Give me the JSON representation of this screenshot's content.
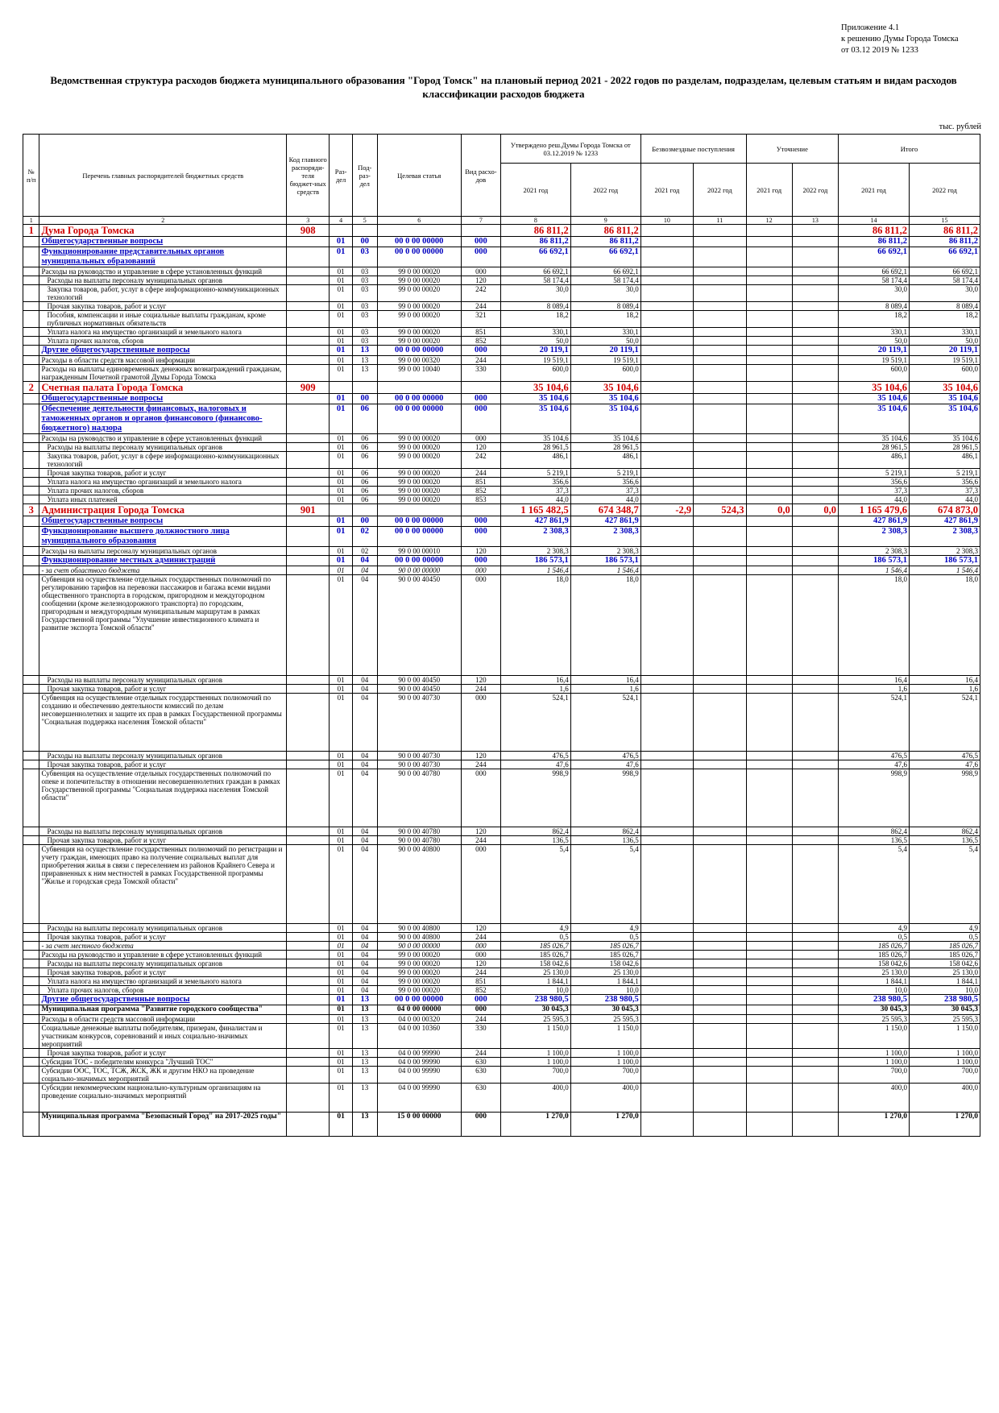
{
  "appendix": {
    "line1": "Приложение 4.1",
    "line2": "к решению Думы Города Томска",
    "line3": "от 03.12 2019 № 1233"
  },
  "title": "Ведомственная структура расходов бюджета муниципального образования \"Город Томск\" на плановый период 2021 - 2022 годов по разделам, подразделам, целевым статьям и видам расходов классификации расходов бюджета",
  "units": "тыс. рублей",
  "headers": {
    "num": "№ п/п",
    "name": "Перечень главных распорядителей бюджетных средств",
    "code": "Код главного распоряди-теля бюджет-ных средств",
    "section": "Раз-дел",
    "subsection": "Под-раз-дел",
    "target": "Целевая статья",
    "kind": "Вид расхо-дов",
    "approved": "Утверждено реш.Думы Города Томска от 03.12.2019 № 1233",
    "grants": "Безвозмездные поступления",
    "clarify": "Уточнение",
    "total": "Итого",
    "y2021": "2021 год",
    "y2022": "2022 год",
    "colnums": [
      "1",
      "2",
      "3",
      "4",
      "5",
      "6",
      "7",
      "8",
      "9",
      "10",
      "11",
      "12",
      "13",
      "14",
      "15"
    ]
  },
  "rows": [
    {
      "t": "l1",
      "n": "1",
      "name": "Дума Города Томска",
      "code": "908",
      "v8": "86 811,2",
      "v9": "86 811,2",
      "v14": "86 811,2",
      "v15": "86 811,2"
    },
    {
      "t": "l2",
      "name": "Общегосударственные вопросы",
      "s": "01",
      "p": "00",
      "c": "00 0 00 00000",
      "k": "000",
      "v8": "86 811,2",
      "v9": "86 811,2",
      "v14": "86 811,2",
      "v15": "86 811,2"
    },
    {
      "t": "l2",
      "name": "Функционирование представительных органов муниципальных образований",
      "s": "01",
      "p": "03",
      "c": "00 0 00 00000",
      "k": "000",
      "v8": "66 692,1",
      "v9": "66 692,1",
      "v14": "66 692,1",
      "v15": "66 692,1"
    },
    {
      "t": "d",
      "name": "Расходы на руководство и управление в сфере установленных функций",
      "s": "01",
      "p": "03",
      "c": "99 0 00 00020",
      "k": "000",
      "v8": "66 692,1",
      "v9": "66 692,1",
      "v14": "66 692,1",
      "v15": "66 692,1"
    },
    {
      "t": "d",
      "ind": 1,
      "name": "Расходы на выплаты персоналу муниципальных органов",
      "s": "01",
      "p": "03",
      "c": "99 0 00 00020",
      "k": "120",
      "v8": "58 174,4",
      "v9": "58 174,4",
      "v14": "58 174,4",
      "v15": "58 174,4"
    },
    {
      "t": "d",
      "ind": 1,
      "name": "Закупка товаров, работ, услуг в сфере информационно-коммуникационных технологий",
      "s": "01",
      "p": "03",
      "c": "99 0 00 00020",
      "k": "242",
      "v8": "30,0",
      "v9": "30,0",
      "v14": "30,0",
      "v15": "30,0"
    },
    {
      "t": "d",
      "ind": 1,
      "name": "Прочая закупка товаров, работ и услуг",
      "s": "01",
      "p": "03",
      "c": "99 0 00 00020",
      "k": "244",
      "v8": "8 089,4",
      "v9": "8 089,4",
      "v14": "8 089,4",
      "v15": "8 089,4"
    },
    {
      "t": "d",
      "ind": 1,
      "name": "Пособия, компенсации и иные социальные выплаты гражданам, кроме публичных нормативных обязательств",
      "s": "01",
      "p": "03",
      "c": "99 0 00 00020",
      "k": "321",
      "v8": "18,2",
      "v9": "18,2",
      "v14": "18,2",
      "v15": "18,2"
    },
    {
      "t": "d",
      "ind": 1,
      "name": "Уплата налога на имущество организаций и земельного налога",
      "s": "01",
      "p": "03",
      "c": "99 0 00 00020",
      "k": "851",
      "v8": "330,1",
      "v9": "330,1",
      "v14": "330,1",
      "v15": "330,1"
    },
    {
      "t": "d",
      "ind": 1,
      "name": "Уплата прочих налогов, сборов",
      "s": "01",
      "p": "03",
      "c": "99 0 00 00020",
      "k": "852",
      "v8": "50,0",
      "v9": "50,0",
      "v14": "50,0",
      "v15": "50,0"
    },
    {
      "t": "l2",
      "name": "Другие общегосударственные вопросы",
      "s": "01",
      "p": "13",
      "c": "00 0 00 00000",
      "k": "000",
      "v8": "20 119,1",
      "v9": "20 119,1",
      "v14": "20 119,1",
      "v15": "20 119,1"
    },
    {
      "t": "d",
      "name": "Расходы в области средств массовой информации",
      "s": "01",
      "p": "13",
      "c": "99 0 00 00320",
      "k": "244",
      "v8": "19 519,1",
      "v9": "19 519,1",
      "v14": "19 519,1",
      "v15": "19 519,1"
    },
    {
      "t": "d",
      "name": "Расходы на выплаты единовременных денежных вознаграждений гражданам, награжденным Почетной грамотой Думы Города Томска",
      "s": "01",
      "p": "13",
      "c": "99 0 00 10040",
      "k": "330",
      "v8": "600,0",
      "v9": "600,0",
      "v14": "600,0",
      "v15": "600,0"
    },
    {
      "t": "l1",
      "n": "2",
      "name": "Счетная палата Города Томска",
      "code": "909",
      "v8": "35 104,6",
      "v9": "35 104,6",
      "v14": "35 104,6",
      "v15": "35 104,6"
    },
    {
      "t": "l2",
      "name": "Общегосударственные вопросы",
      "s": "01",
      "p": "00",
      "c": "00 0 00 00000",
      "k": "000",
      "v8": "35 104,6",
      "v9": "35 104,6",
      "v14": "35 104,6",
      "v15": "35 104,6"
    },
    {
      "t": "l2",
      "name": "Обеспечение деятельности финансовых, налоговых и таможенных органов и органов финансового (финансово-бюджетного) надзора",
      "s": "01",
      "p": "06",
      "c": "00 0 00 00000",
      "k": "000",
      "v8": "35 104,6",
      "v9": "35 104,6",
      "v14": "35 104,6",
      "v15": "35 104,6"
    },
    {
      "t": "d",
      "name": "Расходы на руководство и управление в сфере установленных функций",
      "s": "01",
      "p": "06",
      "c": "99 0 00 00020",
      "k": "000",
      "v8": "35 104,6",
      "v9": "35 104,6",
      "v14": "35 104,6",
      "v15": "35 104,6"
    },
    {
      "t": "d",
      "ind": 1,
      "name": "Расходы на выплаты персоналу муниципальных органов",
      "s": "01",
      "p": "06",
      "c": "99 0 00 00020",
      "k": "120",
      "v8": "28 961,5",
      "v9": "28 961,5",
      "v14": "28 961,5",
      "v15": "28 961,5"
    },
    {
      "t": "d",
      "ind": 1,
      "name": "Закупка товаров, работ, услуг в сфере информационно-коммуникационных технологий",
      "s": "01",
      "p": "06",
      "c": "99 0 00 00020",
      "k": "242",
      "v8": "486,1",
      "v9": "486,1",
      "v14": "486,1",
      "v15": "486,1"
    },
    {
      "t": "d",
      "ind": 1,
      "name": "Прочая закупка товаров, работ и услуг",
      "s": "01",
      "p": "06",
      "c": "99 0 00 00020",
      "k": "244",
      "v8": "5 219,1",
      "v9": "5 219,1",
      "v14": "5 219,1",
      "v15": "5 219,1"
    },
    {
      "t": "d",
      "ind": 1,
      "name": "Уплата налога на имущество организаций и земельного налога",
      "s": "01",
      "p": "06",
      "c": "99 0 00 00020",
      "k": "851",
      "v8": "356,6",
      "v9": "356,6",
      "v14": "356,6",
      "v15": "356,6"
    },
    {
      "t": "d",
      "ind": 1,
      "name": "Уплата прочих налогов, сборов",
      "s": "01",
      "p": "06",
      "c": "99 0 00 00020",
      "k": "852",
      "v8": "37,3",
      "v9": "37,3",
      "v14": "37,3",
      "v15": "37,3"
    },
    {
      "t": "d",
      "ind": 1,
      "name": "Уплата иных платежей",
      "s": "01",
      "p": "06",
      "c": "99 0 00 00020",
      "k": "853",
      "v8": "44,0",
      "v9": "44,0",
      "v14": "44,0",
      "v15": "44,0"
    },
    {
      "t": "l1",
      "n": "3",
      "name": "Администрация Города Томска",
      "code": "901",
      "v8": "1 165 482,5",
      "v9": "674 348,7",
      "v10": "-2,9",
      "v11": "524,3",
      "v12": "0,0",
      "v13": "0,0",
      "v14": "1 165 479,6",
      "v15": "674 873,0"
    },
    {
      "t": "l2",
      "name": "Общегосударственные вопросы",
      "s": "01",
      "p": "00",
      "c": "00 0 00 00000",
      "k": "000",
      "v8": "427 861,9",
      "v9": "427 861,9",
      "v14": "427 861,9",
      "v15": "427 861,9"
    },
    {
      "t": "l2",
      "name": "Функционирование высшего должностного лица муниципального образования",
      "s": "01",
      "p": "02",
      "c": "00 0 00 00000",
      "k": "000",
      "v8": "2 308,3",
      "v9": "2 308,3",
      "v14": "2 308,3",
      "v15": "2 308,3"
    },
    {
      "t": "d",
      "name": "Расходы на выплаты персоналу муниципальных органов",
      "s": "01",
      "p": "02",
      "c": "99 0 00 00010",
      "k": "120",
      "v8": "2 308,3",
      "v9": "2 308,3",
      "v14": "2 308,3",
      "v15": "2 308,3"
    },
    {
      "t": "l2",
      "name": "Функционирование местных администраций",
      "s": "01",
      "p": "04",
      "c": "00 0 00 00000",
      "k": "000",
      "v8": "186 573,1",
      "v9": "186 573,1",
      "v14": "186 573,1",
      "v15": "186 573,1"
    },
    {
      "t": "f",
      "name": "- за счет областного бюджета",
      "s": "01",
      "p": "04",
      "c": "90 0 00 00000",
      "k": "000",
      "v8": "1 546,4",
      "v9": "1 546,4",
      "v14": "1 546,4",
      "v15": "1 546,4"
    },
    {
      "t": "d",
      "h": 125,
      "name": "Субвенция на осуществление отдельных государственных полномочий по регулированию тарифов на перевозки пассажиров и багажа всеми видами общественного транспорта в городском, пригородном и междугородном сообщении (кроме железнодорожного транспорта) по городским, пригородным и междугородным муниципальным маршрутам в рамках Государственной программы \"Улучшение инвестиционного климата и развитие экспорта Томской области\"",
      "s": "01",
      "p": "04",
      "c": "90 0 00 40450",
      "k": "000",
      "v8": "18,0",
      "v9": "18,0",
      "v14": "18,0",
      "v15": "18,0"
    },
    {
      "t": "d",
      "ind": 1,
      "name": "Расходы на выплаты персоналу муниципальных органов",
      "s": "01",
      "p": "04",
      "c": "90 0 00 40450",
      "k": "120",
      "v8": "16,4",
      "v9": "16,4",
      "v14": "16,4",
      "v15": "16,4"
    },
    {
      "t": "d",
      "ind": 1,
      "name": "Прочая закупка товаров, работ и услуг",
      "s": "01",
      "p": "04",
      "c": "90 0 00 40450",
      "k": "244",
      "v8": "1,6",
      "v9": "1,6",
      "v14": "1,6",
      "v15": "1,6"
    },
    {
      "t": "d",
      "h": 72,
      "name": "Субвенция на осуществление отдельных государственных полномочий по созданию и обеспечению деятельности комиссий по делам несовершеннолетних и защите их прав в рамках Государственной программы \"Социальная поддержка населения Томской области\"",
      "s": "01",
      "p": "04",
      "c": "90 0 00 40730",
      "k": "000",
      "v8": "524,1",
      "v9": "524,1",
      "v14": "524,1",
      "v15": "524,1"
    },
    {
      "t": "d",
      "ind": 1,
      "name": "Расходы на выплаты персоналу муниципальных органов",
      "s": "01",
      "p": "04",
      "c": "90 0 00 40730",
      "k": "120",
      "v8": "476,5",
      "v9": "476,5",
      "v14": "476,5",
      "v15": "476,5"
    },
    {
      "t": "d",
      "ind": 1,
      "name": "Прочая закупка товаров, работ и услуг",
      "s": "01",
      "p": "04",
      "c": "90 0 00 40730",
      "k": "244",
      "v8": "47,6",
      "v9": "47,6",
      "v14": "47,6",
      "v15": "47,6"
    },
    {
      "t": "d",
      "h": 72,
      "name": "Субвенция на осуществление отдельных государственных полномочий по опеке и попечительству в отношении несовершеннолетних граждан в рамках Государственной программы \"Социальная поддержка населения Томской области\"",
      "s": "01",
      "p": "04",
      "c": "90 0 00 40780",
      "k": "000",
      "v8": "998,9",
      "v9": "998,9",
      "v14": "998,9",
      "v15": "998,9"
    },
    {
      "t": "d",
      "ind": 1,
      "name": "Расходы на выплаты персоналу муниципальных органов",
      "s": "01",
      "p": "04",
      "c": "90 0 00 40780",
      "k": "120",
      "v8": "862,4",
      "v9": "862,4",
      "v14": "862,4",
      "v15": "862,4"
    },
    {
      "t": "d",
      "ind": 1,
      "name": "Прочая закупка товаров, работ и услуг",
      "s": "01",
      "p": "04",
      "c": "90 0 00 40780",
      "k": "244",
      "v8": "136,5",
      "v9": "136,5",
      "v14": "136,5",
      "v15": "136,5"
    },
    {
      "t": "d",
      "h": 98,
      "name": "Субвенция на осуществление государственных полномочий по регистрации и учету граждан, имеющих право на получение социальных выплат для приобретения жилья в связи с переселением из районов Крайнего Севера и приравненных к ним местностей в рамках Государственной программы \"Жилье и городская среда Томской области\"",
      "s": "01",
      "p": "04",
      "c": "90 0 00 40800",
      "k": "000",
      "v8": "5,4",
      "v9": "5,4",
      "v14": "5,4",
      "v15": "5,4"
    },
    {
      "t": "d",
      "ind": 1,
      "name": "Расходы на выплаты персоналу муниципальных органов",
      "s": "01",
      "p": "04",
      "c": "90 0 00 40800",
      "k": "120",
      "v8": "4,9",
      "v9": "4,9",
      "v14": "4,9",
      "v15": "4,9"
    },
    {
      "t": "d",
      "ind": 1,
      "name": "Прочая закупка товаров, работ и услуг",
      "s": "01",
      "p": "04",
      "c": "90 0 00 40800",
      "k": "244",
      "v8": "0,5",
      "v9": "0,5",
      "v14": "0,5",
      "v15": "0,5"
    },
    {
      "t": "f",
      "name": "- за счет местного бюджета",
      "s": "01",
      "p": "04",
      "c": "90 0 00 00000",
      "k": "000",
      "v8": "185 026,7",
      "v9": "185 026,7",
      "v14": "185 026,7",
      "v15": "185 026,7"
    },
    {
      "t": "d",
      "name": "Расходы на руководство и управление в сфере установленных функций",
      "s": "01",
      "p": "04",
      "c": "99 0 00 00020",
      "k": "000",
      "v8": "185 026,7",
      "v9": "185 026,7",
      "v14": "185 026,7",
      "v15": "185 026,7"
    },
    {
      "t": "d",
      "ind": 1,
      "name": "Расходы на выплаты персоналу муниципальных органов",
      "s": "01",
      "p": "04",
      "c": "99 0 00 00020",
      "k": "120",
      "v8": "158 042,6",
      "v9": "158 042,6",
      "v14": "158 042,6",
      "v15": "158 042,6"
    },
    {
      "t": "d",
      "ind": 1,
      "name": "Прочая закупка товаров, работ и услуг",
      "s": "01",
      "p": "04",
      "c": "99 0 00 00020",
      "k": "244",
      "v8": "25 130,0",
      "v9": "25 130,0",
      "v14": "25 130,0",
      "v15": "25 130,0"
    },
    {
      "t": "d",
      "ind": 1,
      "name": "Уплата налога на имущество организаций и земельного налога",
      "s": "01",
      "p": "04",
      "c": "99 0 00 00020",
      "k": "851",
      "v8": "1 844,1",
      "v9": "1 844,1",
      "v14": "1 844,1",
      "v15": "1 844,1"
    },
    {
      "t": "d",
      "ind": 1,
      "name": "Уплата прочих налогов, сборов",
      "s": "01",
      "p": "04",
      "c": "99 0 00 00020",
      "k": "852",
      "v8": "10,0",
      "v9": "10,0",
      "v14": "10,0",
      "v15": "10,0"
    },
    {
      "t": "l2",
      "name": "Другие общегосударственные вопросы",
      "s": "01",
      "p": "13",
      "c": "00 0 00 00000",
      "k": "000",
      "v8": "238 980,5",
      "v9": "238 980,5",
      "v14": "238 980,5",
      "v15": "238 980,5"
    },
    {
      "t": "l3",
      "name": "Муниципальная программа \"Развитие городского сообщества\"",
      "s": "01",
      "p": "13",
      "c": "04 0 00 00000",
      "k": "000",
      "v8": "30 045,3",
      "v9": "30 045,3",
      "v14": "30 045,3",
      "v15": "30 045,3"
    },
    {
      "t": "d",
      "name": "Расходы в области средств массовой информации",
      "s": "01",
      "p": "13",
      "c": "04 0 00 00320",
      "k": "244",
      "v8": "25 595,3",
      "v9": "25 595,3",
      "v14": "25 595,3",
      "v15": "25 595,3"
    },
    {
      "t": "d",
      "name": "Социальные денежные выплаты победителям, призерам, финалистам и участникам конкурсов, соревнований и иных социально-значимых мероприятий",
      "s": "01",
      "p": "13",
      "c": "04 0 00 10360",
      "k": "330",
      "v8": "1 150,0",
      "v9": "1 150,0",
      "v14": "1 150,0",
      "v15": "1 150,0"
    },
    {
      "t": "d",
      "ind": 1,
      "name": "Прочая закупка товаров, работ и услуг",
      "s": "01",
      "p": "13",
      "c": "04 0 00 99990",
      "k": "244",
      "v8": "1 100,0",
      "v9": "1 100,0",
      "v14": "1 100,0",
      "v15": "1 100,0"
    },
    {
      "t": "d",
      "name": "Субсидии ТОС - победителям конкурса \"Лучший ТОС\"",
      "s": "01",
      "p": "13",
      "c": "04 0 00 99990",
      "k": "630",
      "v8": "1 100,0",
      "v9": "1 100,0",
      "v14": "1 100,0",
      "v15": "1 100,0"
    },
    {
      "t": "d",
      "name": "Субсидии ООС, ТОС, ТСЖ, ЖСК, ЖК и другим НКО на проведение социально-значимых мероприятий",
      "s": "01",
      "p": "13",
      "c": "04 0 00 99990",
      "k": "630",
      "v8": "700,0",
      "v9": "700,0",
      "v14": "700,0",
      "v15": "700,0"
    },
    {
      "t": "d",
      "h": 36,
      "name": "Субсидии некоммерческим национально-культурным организациям на проведение социально-значимых мероприятий",
      "s": "01",
      "p": "13",
      "c": "04 0 00 99990",
      "k": "630",
      "v8": "400,0",
      "v9": "400,0",
      "v14": "400,0",
      "v15": "400,0"
    },
    {
      "t": "l3",
      "h": 30,
      "name": "Муниципальная программа \"Безопасный Город\" на 2017-2025 годы\"",
      "s": "01",
      "p": "13",
      "c": "15 0 00 00000",
      "k": "000",
      "v8": "1 270,0",
      "v9": "1 270,0",
      "v14": "1 270,0",
      "v15": "1 270,0"
    }
  ]
}
